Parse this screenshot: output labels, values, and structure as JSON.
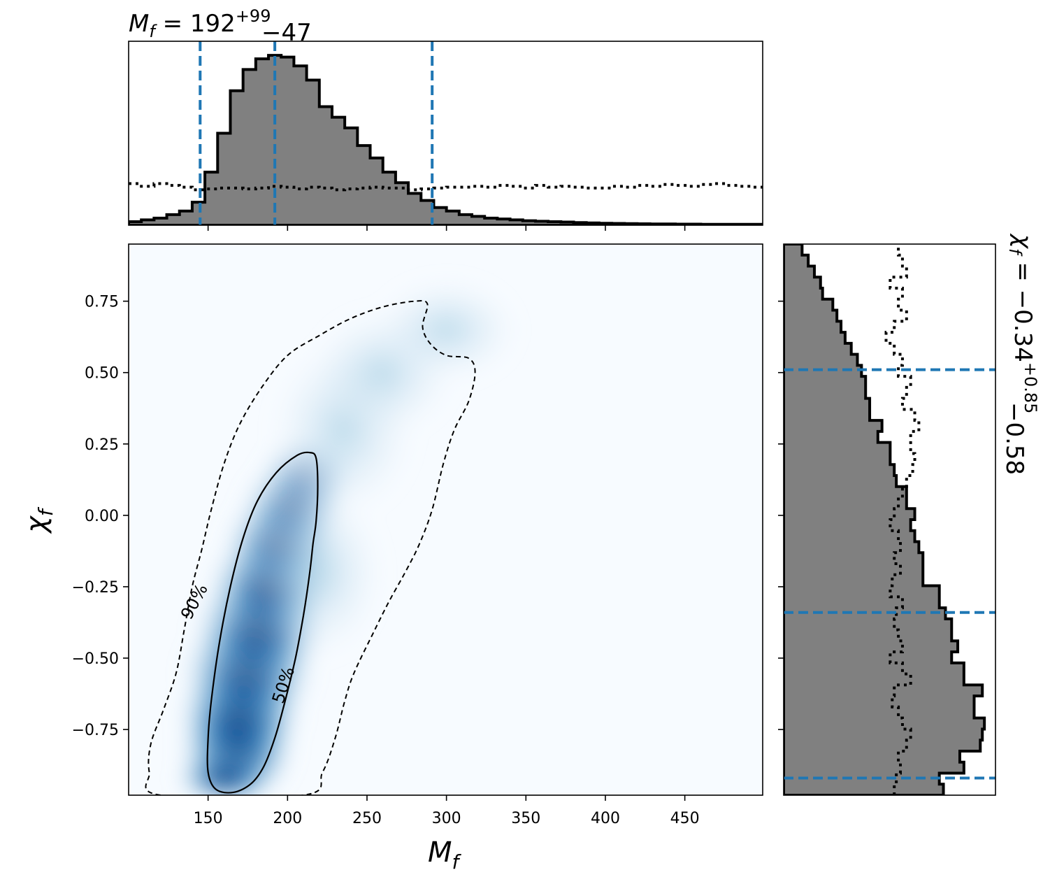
{
  "chart_data": {
    "type": "corner",
    "title_top": {
      "parameter": "M",
      "subscript": "f",
      "equals": " = ",
      "median": "192",
      "plus": "+99",
      "minus": "−47"
    },
    "title_right": {
      "parameter": "χ",
      "subscript": "f",
      "equals": " = ",
      "median": "−0.34",
      "plus": "+0.85",
      "minus": "−0.58"
    },
    "xlabel": {
      "main": "M",
      "sub": "f"
    },
    "ylabel": {
      "main": "χ",
      "sub": "f"
    },
    "xlim": [
      100,
      499
    ],
    "ylim": [
      -0.98,
      0.95
    ],
    "xticks": [
      150,
      200,
      250,
      300,
      350,
      400,
      450
    ],
    "xtick_labels": [
      "150",
      "200",
      "250",
      "300",
      "350",
      "400",
      "450"
    ],
    "yticks": [
      0.75,
      0.5,
      0.25,
      0.0,
      -0.25,
      -0.5,
      -0.75
    ],
    "ytick_labels": [
      "0.75",
      "0.50",
      "0.25",
      "0.00",
      "−0.25",
      "−0.50",
      "−0.75"
    ],
    "credible_lines": {
      "mass": [
        145,
        192,
        291
      ],
      "spin": [
        0.51,
        -0.34,
        -0.92
      ]
    },
    "colors": {
      "hist_fill": "#808080",
      "hist_edge": "#000000",
      "credible": "#1f77b4",
      "heatmap_low": "#f7fbff",
      "heatmap_high": "#08306b"
    },
    "mass_hist": {
      "bin_start": 100,
      "bin_width": 8,
      "posterior": [
        0.02,
        0.03,
        0.04,
        0.06,
        0.08,
        0.13,
        0.3,
        0.52,
        0.76,
        0.88,
        0.94,
        0.96,
        0.95,
        0.9,
        0.82,
        0.67,
        0.61,
        0.55,
        0.45,
        0.38,
        0.3,
        0.24,
        0.18,
        0.14,
        0.1,
        0.08,
        0.06,
        0.05,
        0.04,
        0.035,
        0.03,
        0.025,
        0.022,
        0.02,
        0.018,
        0.015,
        0.013,
        0.011,
        0.01,
        0.009,
        0.008,
        0.007,
        0.007,
        0.006,
        0.006,
        0.005,
        0.005,
        0.005,
        0.005,
        0.005
      ],
      "prior": [
        0.235,
        0.22,
        0.235,
        0.225,
        0.215,
        0.2,
        0.205,
        0.21,
        0.21,
        0.205,
        0.21,
        0.22,
        0.215,
        0.205,
        0.215,
        0.21,
        0.2,
        0.205,
        0.21,
        0.215,
        0.21,
        0.21,
        0.2,
        0.205,
        0.21,
        0.215,
        0.215,
        0.22,
        0.215,
        0.225,
        0.22,
        0.21,
        0.225,
        0.215,
        0.22,
        0.215,
        0.21,
        0.21,
        0.22,
        0.215,
        0.225,
        0.22,
        0.23,
        0.225,
        0.22,
        0.23,
        0.235,
        0.225,
        0.22,
        0.215
      ]
    },
    "spin_hist": {
      "bin_start": -0.98,
      "bin_width": 0.0386,
      "posterior": [
        0.78,
        0.76,
        0.88,
        0.86,
        0.96,
        0.97,
        0.98,
        0.93,
        0.93,
        0.97,
        0.88,
        0.88,
        0.82,
        0.85,
        0.82,
        0.82,
        0.79,
        0.76,
        0.76,
        0.68,
        0.68,
        0.68,
        0.66,
        0.64,
        0.62,
        0.64,
        0.6,
        0.6,
        0.55,
        0.54,
        0.52,
        0.52,
        0.46,
        0.48,
        0.42,
        0.42,
        0.4,
        0.4,
        0.38,
        0.36,
        0.33,
        0.3,
        0.28,
        0.26,
        0.24,
        0.19,
        0.18,
        0.15,
        0.12,
        0.09
      ],
      "prior": [
        0.54,
        0.55,
        0.57,
        0.56,
        0.6,
        0.62,
        0.58,
        0.56,
        0.53,
        0.54,
        0.62,
        0.58,
        0.52,
        0.58,
        0.56,
        0.54,
        0.55,
        0.58,
        0.52,
        0.53,
        0.57,
        0.54,
        0.57,
        0.56,
        0.52,
        0.54,
        0.56,
        0.58,
        0.6,
        0.63,
        0.64,
        0.62,
        0.62,
        0.66,
        0.64,
        0.58,
        0.6,
        0.62,
        0.56,
        0.58,
        0.54,
        0.5,
        0.54,
        0.6,
        0.56,
        0.58,
        0.52,
        0.6,
        0.58,
        0.56
      ]
    },
    "contours": {
      "inner": {
        "label": "50%",
        "points": [
          [
            166,
            -0.97
          ],
          [
            155,
            -0.96
          ],
          [
            150,
            -0.9
          ],
          [
            150,
            -0.78
          ],
          [
            152,
            -0.65
          ],
          [
            157,
            -0.45
          ],
          [
            164,
            -0.25
          ],
          [
            172,
            -0.08
          ],
          [
            181,
            0.05
          ],
          [
            193,
            0.15
          ],
          [
            206,
            0.21
          ],
          [
            214,
            0.22
          ],
          [
            218,
            0.2
          ],
          [
            219,
            0.1
          ],
          [
            218,
            -0.02
          ],
          [
            216,
            -0.1
          ],
          [
            214,
            -0.2
          ],
          [
            210,
            -0.35
          ],
          [
            205,
            -0.5
          ],
          [
            198,
            -0.66
          ],
          [
            192,
            -0.78
          ],
          [
            185,
            -0.88
          ],
          [
            177,
            -0.94
          ]
        ]
      },
      "outer": {
        "label": "90%",
        "points": [
          [
            120,
            -0.98
          ],
          [
            113,
            -0.9
          ],
          [
            114,
            -0.8
          ],
          [
            122,
            -0.68
          ],
          [
            130,
            -0.55
          ],
          [
            135,
            -0.4
          ],
          [
            140,
            -0.25
          ],
          [
            146,
            -0.12
          ],
          [
            152,
            0.02
          ],
          [
            160,
            0.18
          ],
          [
            170,
            0.32
          ],
          [
            184,
            0.45
          ],
          [
            200,
            0.56
          ],
          [
            220,
            0.63
          ],
          [
            240,
            0.69
          ],
          [
            260,
            0.73
          ],
          [
            280,
            0.75
          ],
          [
            288,
            0.74
          ],
          [
            285,
            0.66
          ],
          [
            290,
            0.6
          ],
          [
            300,
            0.56
          ],
          [
            314,
            0.55
          ],
          [
            318,
            0.5
          ],
          [
            314,
            0.4
          ],
          [
            305,
            0.3
          ],
          [
            298,
            0.18
          ],
          [
            291,
            0.02
          ],
          [
            283,
            -0.1
          ],
          [
            274,
            -0.2
          ],
          [
            264,
            -0.3
          ],
          [
            255,
            -0.4
          ],
          [
            242,
            -0.55
          ],
          [
            236,
            -0.65
          ],
          [
            230,
            -0.78
          ],
          [
            222,
            -0.9
          ],
          [
            210,
            -0.98
          ]
        ]
      }
    }
  }
}
